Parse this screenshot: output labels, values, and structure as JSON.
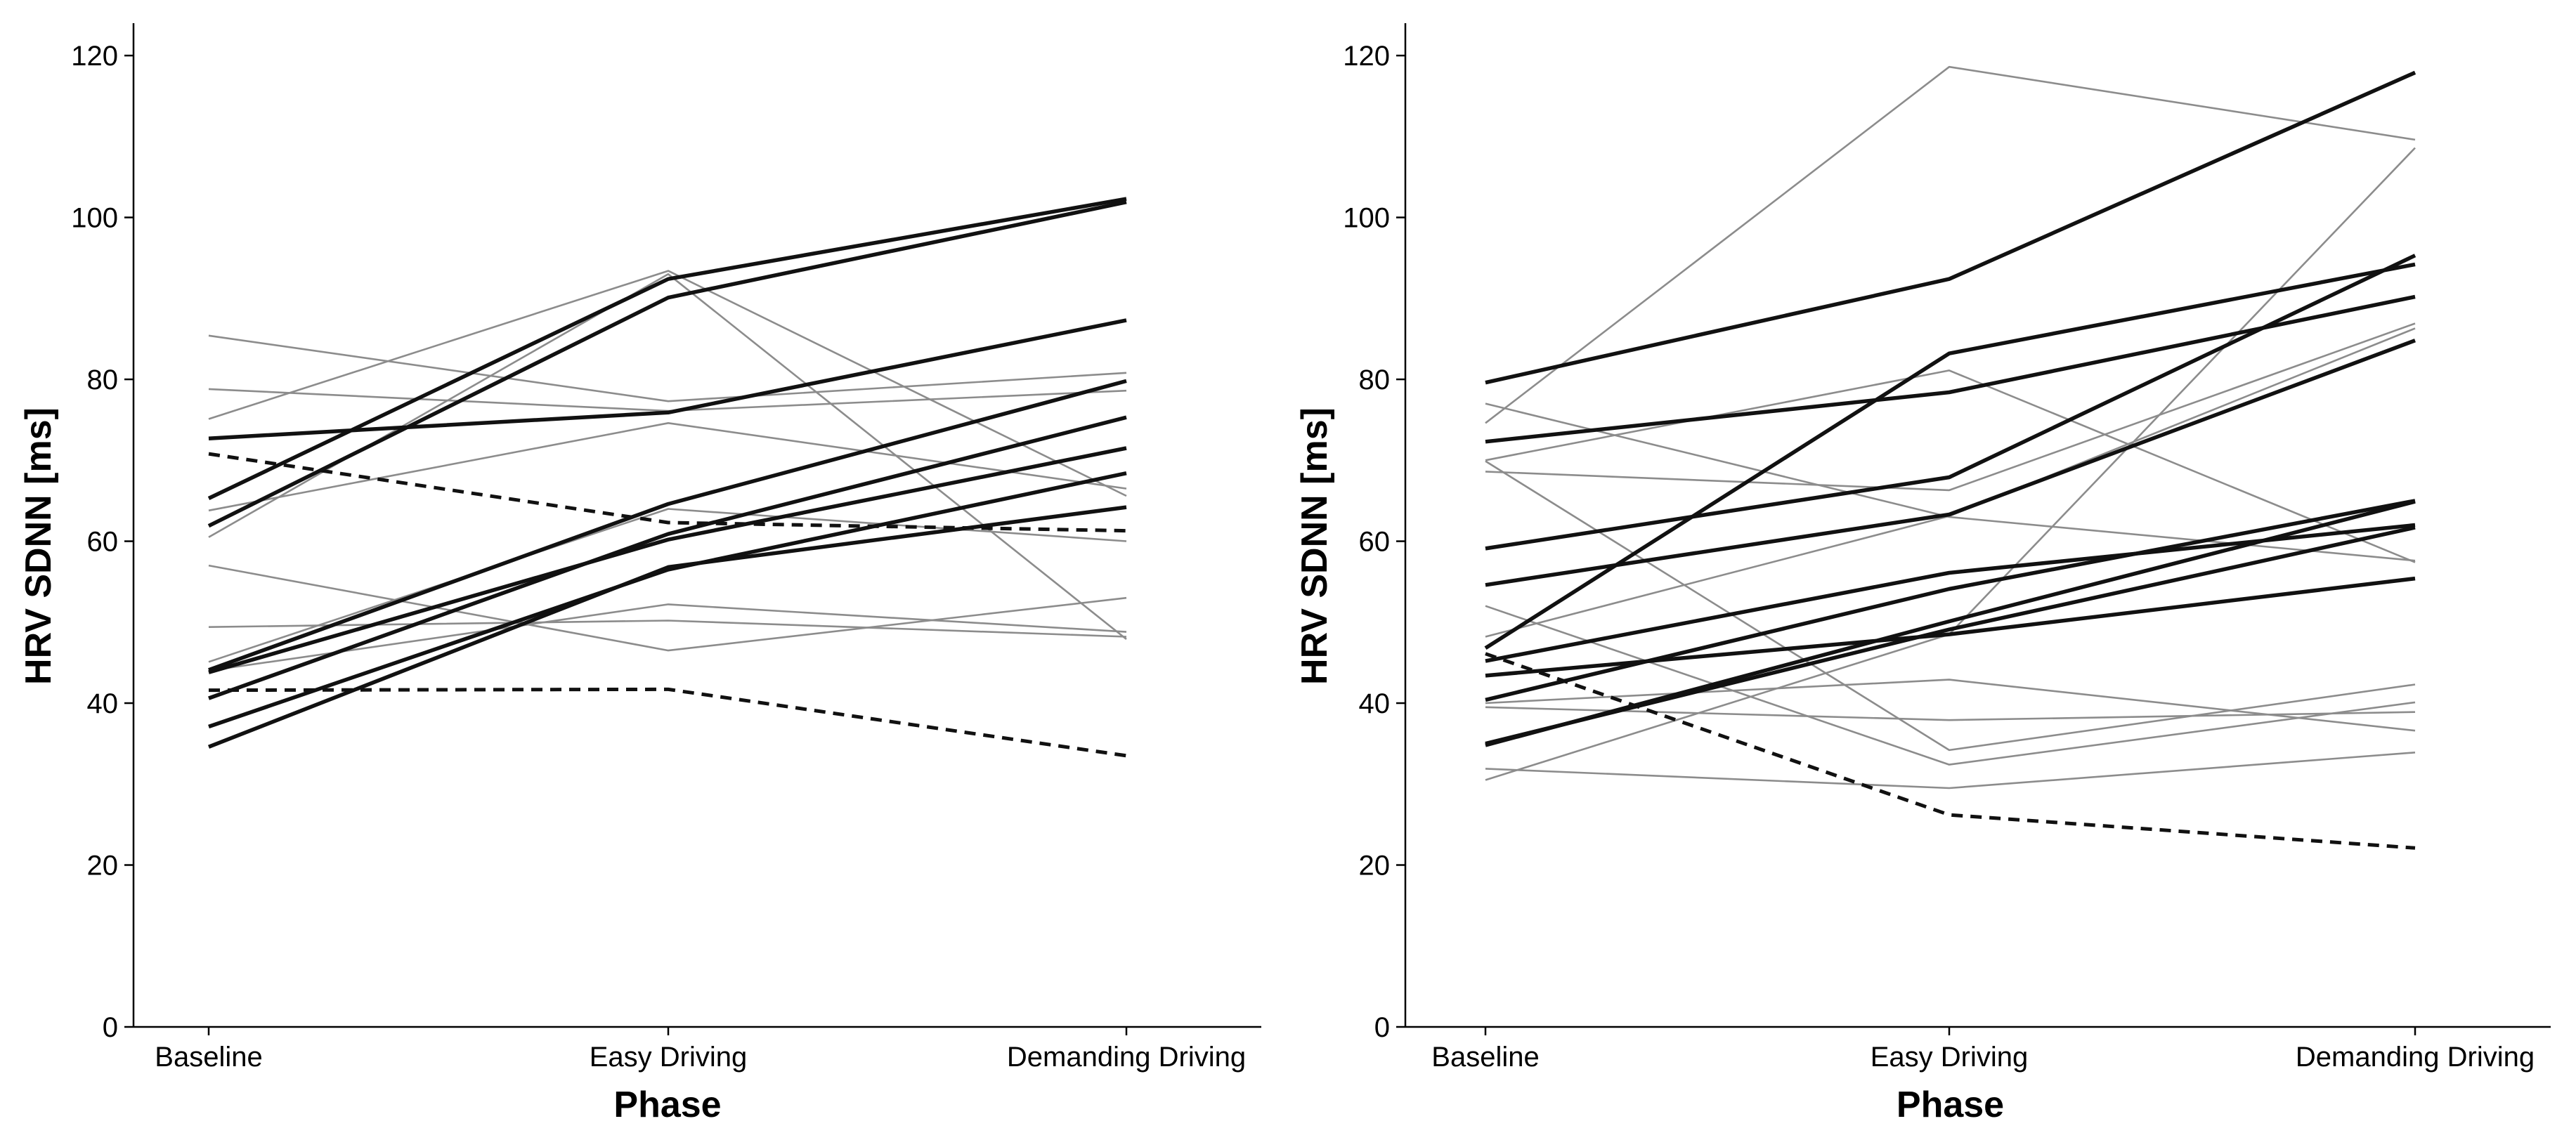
{
  "chart_data": [
    {
      "type": "line",
      "title": "",
      "xlabel": "Phase",
      "ylabel": "HRV SDNN [ms]",
      "categories": [
        "Baseline",
        "Easy Driving",
        "Demanding Driving"
      ],
      "ylim": [
        0,
        124
      ],
      "yticks": [
        0,
        20,
        40,
        60,
        80,
        100,
        120
      ],
      "grid": false,
      "series": [
        {
          "name": "thick-1",
          "style": "thick",
          "values": [
            65.3,
            92.4,
            102.3
          ]
        },
        {
          "name": "thick-2",
          "style": "thick",
          "values": [
            61.9,
            90.1,
            101.9
          ]
        },
        {
          "name": "thick-3",
          "style": "thick",
          "values": [
            72.7,
            75.9,
            87.3
          ]
        },
        {
          "name": "thick-4",
          "style": "thick",
          "values": [
            44.1,
            64.6,
            79.8
          ]
        },
        {
          "name": "thick-5",
          "style": "thick",
          "values": [
            40.6,
            60.9,
            75.3
          ]
        },
        {
          "name": "thick-6",
          "style": "thick",
          "values": [
            43.8,
            60.2,
            71.5
          ]
        },
        {
          "name": "thick-7",
          "style": "thick",
          "values": [
            37.1,
            56.5,
            68.4
          ]
        },
        {
          "name": "thick-8",
          "style": "thick",
          "values": [
            34.6,
            56.8,
            64.2
          ]
        },
        {
          "name": "dashed-1",
          "style": "dashed",
          "values": [
            70.8,
            62.3,
            61.3
          ]
        },
        {
          "name": "dashed-2",
          "style": "dashed",
          "values": [
            41.6,
            41.7,
            33.5
          ]
        },
        {
          "name": "thin-1",
          "style": "thin",
          "values": [
            85.4,
            77.3,
            80.8
          ]
        },
        {
          "name": "thin-2",
          "style": "thin",
          "values": [
            78.8,
            76.1,
            78.6
          ]
        },
        {
          "name": "thin-3",
          "style": "thin",
          "values": [
            75.1,
            93.4,
            65.6
          ]
        },
        {
          "name": "thin-4",
          "style": "thin",
          "values": [
            60.5,
            93.0,
            47.9
          ]
        },
        {
          "name": "thin-5",
          "style": "thin",
          "values": [
            63.8,
            74.6,
            66.5
          ]
        },
        {
          "name": "thin-6",
          "style": "thin",
          "values": [
            57.0,
            46.5,
            53.0
          ]
        },
        {
          "name": "thin-7",
          "style": "thin",
          "values": [
            49.4,
            50.2,
            48.2
          ]
        },
        {
          "name": "thin-8",
          "style": "thin",
          "values": [
            45.1,
            64.0,
            60.0
          ]
        },
        {
          "name": "thin-9",
          "style": "thin",
          "values": [
            44.0,
            52.2,
            48.8
          ]
        }
      ]
    },
    {
      "type": "line",
      "title": "",
      "xlabel": "Phase",
      "ylabel": "HRV SDNN [ms]",
      "categories": [
        "Baseline",
        "Easy Driving",
        "Demanding Driving"
      ],
      "ylim": [
        0,
        124
      ],
      "yticks": [
        0,
        20,
        40,
        60,
        80,
        100,
        120
      ],
      "grid": false,
      "series": [
        {
          "name": "thick-1",
          "style": "thick",
          "values": [
            79.6,
            92.4,
            117.9
          ]
        },
        {
          "name": "thick-2",
          "style": "thick",
          "values": [
            72.3,
            78.4,
            90.2
          ]
        },
        {
          "name": "thick-3",
          "style": "thick",
          "values": [
            59.1,
            67.9,
            95.3
          ]
        },
        {
          "name": "thick-4",
          "style": "thick",
          "values": [
            46.8,
            83.2,
            94.2
          ]
        },
        {
          "name": "thick-5",
          "style": "thick",
          "values": [
            54.6,
            63.3,
            84.8
          ]
        },
        {
          "name": "thick-6",
          "style": "thick",
          "values": [
            45.2,
            56.1,
            62.0
          ]
        },
        {
          "name": "thick-7",
          "style": "thick",
          "values": [
            43.4,
            48.5,
            55.4
          ]
        },
        {
          "name": "thick-8",
          "style": "thick",
          "values": [
            40.4,
            54.1,
            65.0
          ]
        },
        {
          "name": "thick-9",
          "style": "thick",
          "values": [
            35.0,
            49.1,
            61.7
          ]
        },
        {
          "name": "thick-10",
          "style": "thick",
          "values": [
            34.8,
            50.1,
            64.9
          ]
        },
        {
          "name": "dashed-1",
          "style": "dashed",
          "values": [
            46.1,
            26.2,
            22.1
          ]
        },
        {
          "name": "thin-1",
          "style": "thin",
          "values": [
            74.6,
            118.6,
            109.6
          ]
        },
        {
          "name": "thin-2",
          "style": "thin",
          "values": [
            77.0,
            63.0,
            57.6
          ]
        },
        {
          "name": "thin-3",
          "style": "thin",
          "values": [
            70.0,
            81.1,
            57.4
          ]
        },
        {
          "name": "thin-4",
          "style": "thin",
          "values": [
            68.6,
            66.3,
            86.9
          ]
        },
        {
          "name": "thin-5",
          "style": "thin",
          "values": [
            69.9,
            34.2,
            42.3
          ]
        },
        {
          "name": "thin-6",
          "style": "thin",
          "values": [
            52.0,
            32.4,
            40.1
          ]
        },
        {
          "name": "thin-7",
          "style": "thin",
          "values": [
            39.5,
            37.9,
            38.9
          ]
        },
        {
          "name": "thin-8",
          "style": "thin",
          "values": [
            40.0,
            42.9,
            36.6
          ]
        },
        {
          "name": "thin-9",
          "style": "thin",
          "values": [
            31.9,
            29.5,
            33.9
          ]
        },
        {
          "name": "thin-10",
          "style": "thin",
          "values": [
            30.5,
            48.5,
            108.6
          ]
        },
        {
          "name": "thin-11",
          "style": "thin",
          "values": [
            48.2,
            63.1,
            86.3
          ]
        }
      ]
    }
  ]
}
